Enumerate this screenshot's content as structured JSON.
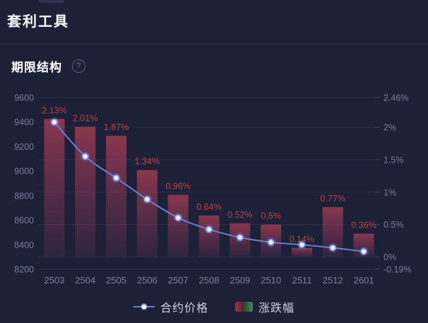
{
  "page": {
    "title": "套利工具"
  },
  "section": {
    "title": "期限结构"
  },
  "legend": {
    "price_label": "合约价格",
    "change_label": "涨跌幅"
  },
  "chart_data": {
    "type": "bar+line",
    "title": "期限结构",
    "categories": [
      "2503",
      "2504",
      "2505",
      "2506",
      "2507",
      "2508",
      "2509",
      "2510",
      "2511",
      "2512",
      "2601"
    ],
    "series": [
      {
        "name": "合约价格",
        "type": "line",
        "axis": "left",
        "values": [
          9400,
          9120,
          8945,
          8770,
          8620,
          8525,
          8460,
          8420,
          8400,
          8375,
          8345
        ]
      },
      {
        "name": "涨跌幅",
        "type": "bar",
        "axis": "right",
        "values": [
          2.13,
          2.01,
          1.87,
          1.34,
          0.96,
          0.64,
          0.52,
          0.5,
          0.14,
          0.77,
          0.36
        ],
        "labels": [
          "2.13%",
          "2.01%",
          "1.87%",
          "1.34%",
          "0.96%",
          "0.64%",
          "0.52%",
          "0.5%",
          "0.14%",
          "0.77%",
          "0.36%"
        ]
      }
    ],
    "left_axis": {
      "min": 8200,
      "max": 9600,
      "tick_labels": [
        "9600",
        "9400",
        "9200",
        "9000",
        "8800",
        "8600",
        "8400",
        "8200"
      ]
    },
    "right_axis": {
      "min": -0.19,
      "max": 2.46,
      "tick_values": [
        2.46,
        2,
        1.5,
        1,
        0.5,
        0,
        -0.19
      ],
      "tick_labels": [
        "2.46%",
        "2%",
        "1.5%",
        "1%",
        "0.5%",
        "0%",
        "-0.19%"
      ]
    },
    "grid": "on",
    "legend_position": "bottom",
    "colors": {
      "background": "#1c2137",
      "grid_line": "#2a3150",
      "axis_label": "#767e9b",
      "bar_label": "#b8423f",
      "line": "#5e82d6",
      "bar_top": "#a63c52",
      "bar_bottom": "#8a3560",
      "legend_text": "#ccd1e3",
      "legend_red": "#9e3742",
      "legend_green": "#3f8a5f"
    }
  }
}
